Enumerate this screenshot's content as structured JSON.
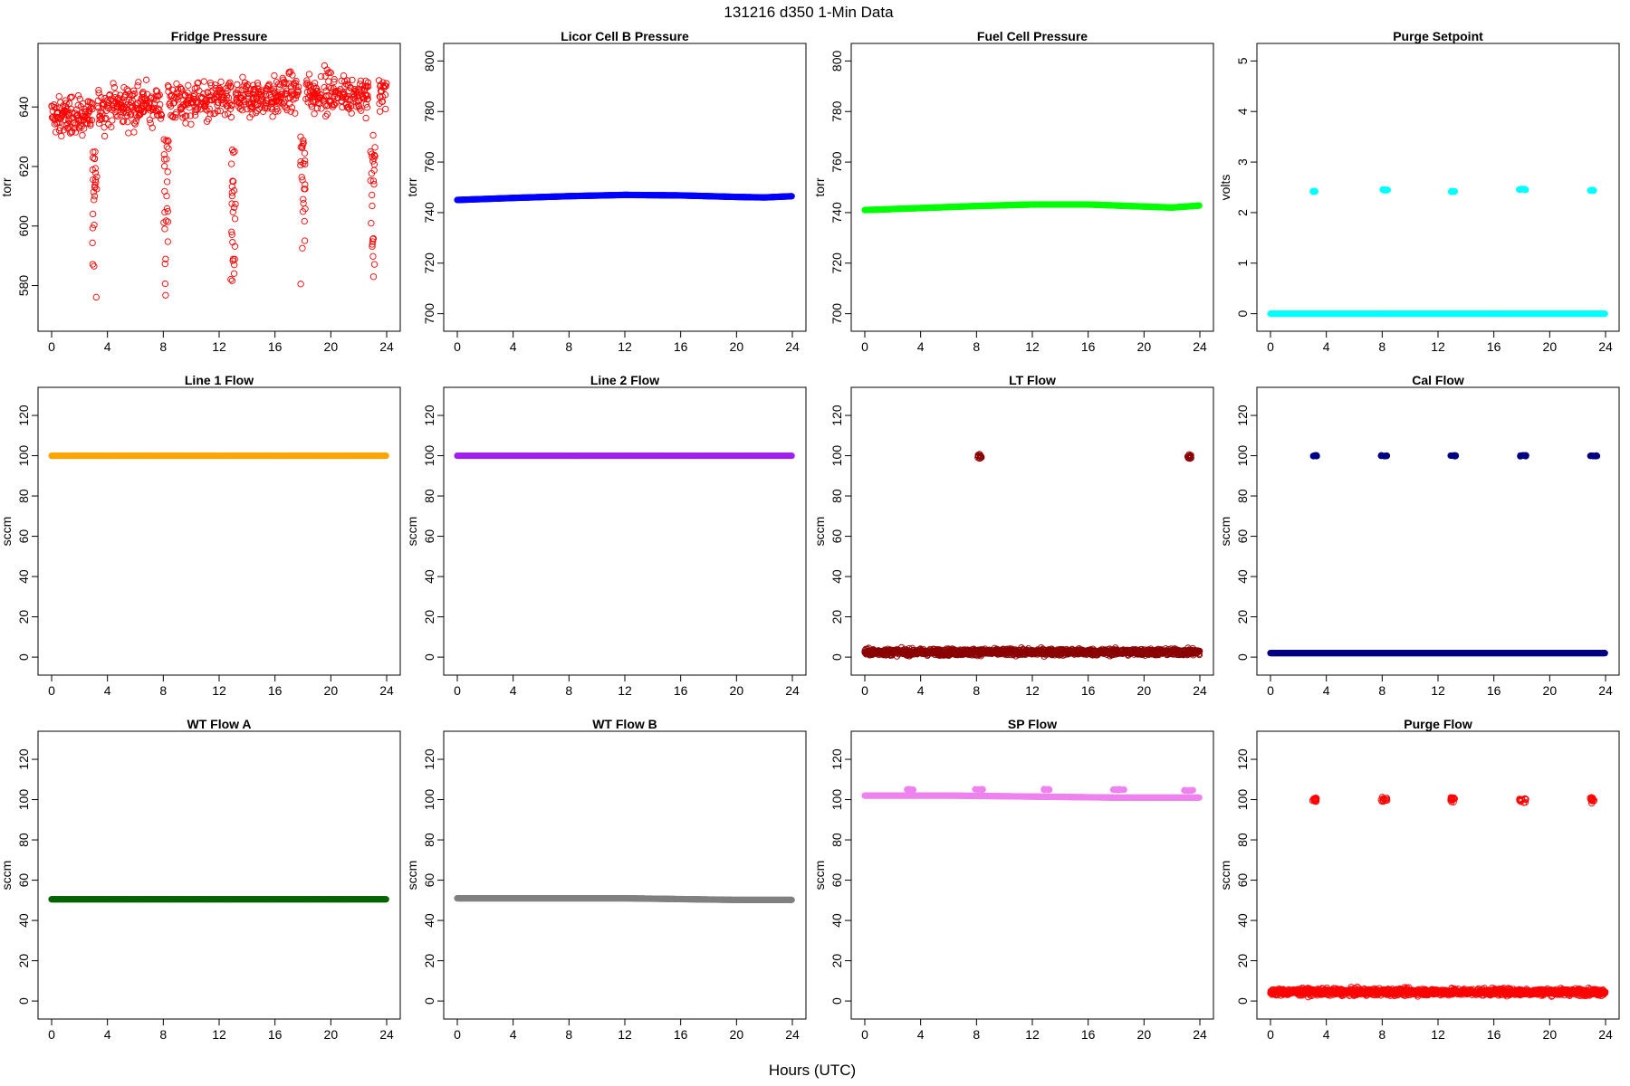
{
  "figure": {
    "title": "131216   d350   1-Min Data",
    "xlabel": "Hours (UTC)"
  },
  "chart_data": [
    {
      "type": "scatter",
      "title": "Fridge Pressure",
      "ylabel": "torr",
      "color": "#ff0000",
      "marker": "open-circle",
      "xlim": [
        0,
        24
      ],
      "ylim": [
        568,
        658
      ],
      "xticks": [
        0,
        4,
        8,
        12,
        16,
        20,
        24
      ],
      "yticks": [
        580,
        600,
        620,
        640
      ],
      "baseline": {
        "x": [
          0,
          3,
          3.3,
          7.8,
          8.3,
          12.8,
          13.2,
          17.6,
          18.2,
          22.6,
          23.4,
          24
        ],
        "y": [
          637,
          637,
          640,
          641,
          641,
          642,
          642,
          645,
          645,
          644,
          644,
          646
        ],
        "noise": 6
      },
      "gaps": [
        [
          3.0,
          3.3
        ],
        [
          7.9,
          8.3
        ],
        [
          12.9,
          13.2
        ],
        [
          17.7,
          18.2
        ],
        [
          22.7,
          23.4
        ]
      ],
      "dips": [
        {
          "x": 3.1,
          "min": 570,
          "max": 625
        },
        {
          "x": 8.2,
          "min": 575,
          "max": 630
        },
        {
          "x": 13.0,
          "min": 574,
          "max": 627
        },
        {
          "x": 18.0,
          "min": 574,
          "max": 630
        },
        {
          "x": 23.0,
          "min": 581,
          "max": 632
        }
      ]
    },
    {
      "type": "scatter",
      "title": "Licor Cell B Pressure",
      "ylabel": "torr",
      "color": "#0000ff",
      "marker": "filled-band",
      "xlim": [
        0,
        24
      ],
      "ylim": [
        697,
        803
      ],
      "xticks": [
        0,
        4,
        8,
        12,
        16,
        20,
        24
      ],
      "yticks": [
        700,
        720,
        740,
        760,
        780,
        800
      ],
      "series": {
        "x": [
          0,
          4,
          8,
          12,
          16,
          20,
          22,
          24
        ],
        "y": [
          745,
          745.8,
          746.5,
          747,
          746.8,
          746.2,
          746,
          746.5
        ]
      }
    },
    {
      "type": "scatter",
      "title": "Fuel Cell Pressure",
      "ylabel": "torr",
      "color": "#00ff00",
      "marker": "filled-band",
      "xlim": [
        0,
        24
      ],
      "ylim": [
        697,
        803
      ],
      "xticks": [
        0,
        4,
        8,
        12,
        16,
        20,
        24
      ],
      "yticks": [
        700,
        720,
        740,
        760,
        780,
        800
      ],
      "series": {
        "x": [
          0,
          4,
          8,
          12,
          16,
          20,
          22,
          24
        ],
        "y": [
          741,
          741.8,
          742.6,
          743.2,
          743.2,
          742.4,
          742,
          742.8
        ]
      }
    },
    {
      "type": "scatter",
      "title": "Purge Setpoint",
      "ylabel": "volts",
      "color": "#00ffff",
      "marker": "filled-band",
      "xlim": [
        0,
        24
      ],
      "ylim": [
        -0.15,
        5.15
      ],
      "xticks": [
        0,
        4,
        8,
        12,
        16,
        20,
        24
      ],
      "yticks": [
        0,
        1,
        2,
        3,
        4,
        5
      ],
      "series": {
        "x": [
          0,
          24
        ],
        "y": [
          0,
          0
        ]
      },
      "clusters": [
        {
          "x": [
            3.0,
            3.3
          ],
          "y": 2.42
        },
        {
          "x": [
            7.9,
            8.4
          ],
          "y": 2.45
        },
        {
          "x": [
            12.9,
            13.2
          ],
          "y": 2.42
        },
        {
          "x": [
            17.8,
            18.3
          ],
          "y": 2.46
        },
        {
          "x": [
            22.9,
            23.2
          ],
          "y": 2.44
        }
      ]
    },
    {
      "type": "scatter",
      "title": "Line 1 Flow",
      "ylabel": "sccm",
      "color": "#ffa500",
      "marker": "filled-band",
      "xlim": [
        0,
        24
      ],
      "ylim": [
        -4,
        129
      ],
      "xticks": [
        0,
        4,
        8,
        12,
        16,
        20,
        24
      ],
      "yticks": [
        0,
        20,
        40,
        60,
        80,
        100,
        120
      ],
      "series": {
        "x": [
          0,
          24
        ],
        "y": [
          100,
          100
        ]
      }
    },
    {
      "type": "scatter",
      "title": "Line 2 Flow",
      "ylabel": "sccm",
      "color": "#a020f0",
      "marker": "filled-band",
      "xlim": [
        0,
        24
      ],
      "ylim": [
        -4,
        129
      ],
      "xticks": [
        0,
        4,
        8,
        12,
        16,
        20,
        24
      ],
      "yticks": [
        0,
        20,
        40,
        60,
        80,
        100,
        120
      ],
      "series": {
        "x": [
          0,
          24
        ],
        "y": [
          100,
          100
        ]
      }
    },
    {
      "type": "scatter",
      "title": "LT Flow",
      "ylabel": "sccm",
      "color": "#8b0000",
      "marker": "open-circle",
      "xlim": [
        0,
        24
      ],
      "ylim": [
        -4,
        129
      ],
      "xticks": [
        0,
        4,
        8,
        12,
        16,
        20,
        24
      ],
      "yticks": [
        0,
        20,
        40,
        60,
        80,
        100,
        120
      ],
      "series": {
        "x": [
          0,
          24
        ],
        "y": [
          2.5,
          2.5
        ],
        "noise": 1.5
      },
      "clusters": [
        {
          "x": [
            8.1,
            8.4
          ],
          "y": 99.5
        },
        {
          "x": [
            23.1,
            23.4
          ],
          "y": 99.5
        }
      ]
    },
    {
      "type": "scatter",
      "title": "Cal Flow",
      "ylabel": "sccm",
      "color": "#000080",
      "marker": "filled-band",
      "xlim": [
        0,
        24
      ],
      "ylim": [
        -4,
        129
      ],
      "xticks": [
        0,
        4,
        8,
        12,
        16,
        20,
        24
      ],
      "yticks": [
        0,
        20,
        40,
        60,
        80,
        100,
        120
      ],
      "series": {
        "x": [
          0,
          24
        ],
        "y": [
          2,
          2
        ]
      },
      "clusters": [
        {
          "x": [
            3.0,
            3.4
          ],
          "y": 100
        },
        {
          "x": [
            7.9,
            8.5
          ],
          "y": 100
        },
        {
          "x": [
            12.9,
            13.3
          ],
          "y": 100
        },
        {
          "x": [
            17.8,
            18.4
          ],
          "y": 100
        },
        {
          "x": [
            22.9,
            23.4
          ],
          "y": 100
        }
      ]
    },
    {
      "type": "scatter",
      "title": "WT Flow A",
      "ylabel": "sccm",
      "color": "#006400",
      "marker": "filled-band",
      "xlim": [
        0,
        24
      ],
      "ylim": [
        -4,
        129
      ],
      "xticks": [
        0,
        4,
        8,
        12,
        16,
        20,
        24
      ],
      "yticks": [
        0,
        20,
        40,
        60,
        80,
        100,
        120
      ],
      "series": {
        "x": [
          0,
          24
        ],
        "y": [
          50.5,
          50.5
        ]
      }
    },
    {
      "type": "scatter",
      "title": "WT Flow B",
      "ylabel": "sccm",
      "color": "#808080",
      "marker": "filled-band",
      "xlim": [
        0,
        24
      ],
      "ylim": [
        -4,
        129
      ],
      "xticks": [
        0,
        4,
        8,
        12,
        16,
        20,
        24
      ],
      "yticks": [
        0,
        20,
        40,
        60,
        80,
        100,
        120
      ],
      "series": {
        "x": [
          0,
          12,
          16,
          20,
          24
        ],
        "y": [
          51,
          51,
          50.6,
          50.2,
          50.2
        ]
      }
    },
    {
      "type": "scatter",
      "title": "SP Flow",
      "ylabel": "sccm",
      "color": "#ee82ee",
      "marker": "filled-band",
      "xlim": [
        0,
        24
      ],
      "ylim": [
        -4,
        129
      ],
      "xticks": [
        0,
        4,
        8,
        12,
        16,
        20,
        24
      ],
      "yticks": [
        0,
        20,
        40,
        60,
        80,
        100,
        120
      ],
      "series": {
        "x": [
          0,
          6,
          12,
          18,
          24
        ],
        "y": [
          102,
          102,
          101.5,
          101,
          101
        ]
      },
      "clusters": [
        {
          "x": [
            3.0,
            3.5
          ],
          "y": 105
        },
        {
          "x": [
            7.9,
            8.6
          ],
          "y": 105
        },
        {
          "x": [
            12.8,
            13.4
          ],
          "y": 105
        },
        {
          "x": [
            17.8,
            18.6
          ],
          "y": 105
        },
        {
          "x": [
            22.8,
            23.5
          ],
          "y": 104.5
        }
      ]
    },
    {
      "type": "scatter",
      "title": "Purge Flow",
      "ylabel": "sccm",
      "color": "#ff0000",
      "marker": "open-circle",
      "xlim": [
        0,
        24
      ],
      "ylim": [
        -4,
        129
      ],
      "xticks": [
        0,
        4,
        8,
        12,
        16,
        20,
        24
      ],
      "yticks": [
        0,
        20,
        40,
        60,
        80,
        100,
        120
      ],
      "series": {
        "x": [
          0,
          24
        ],
        "y": [
          4.5,
          4.5
        ],
        "noise": 1.6
      },
      "clusters": [
        {
          "x": [
            3.0,
            3.3
          ],
          "y": 100
        },
        {
          "x": [
            7.9,
            8.4
          ],
          "y": 100
        },
        {
          "x": [
            12.9,
            13.2
          ],
          "y": 100
        },
        {
          "x": [
            17.8,
            18.3
          ],
          "y": 100
        },
        {
          "x": [
            22.9,
            23.2
          ],
          "y": 100
        }
      ]
    }
  ]
}
